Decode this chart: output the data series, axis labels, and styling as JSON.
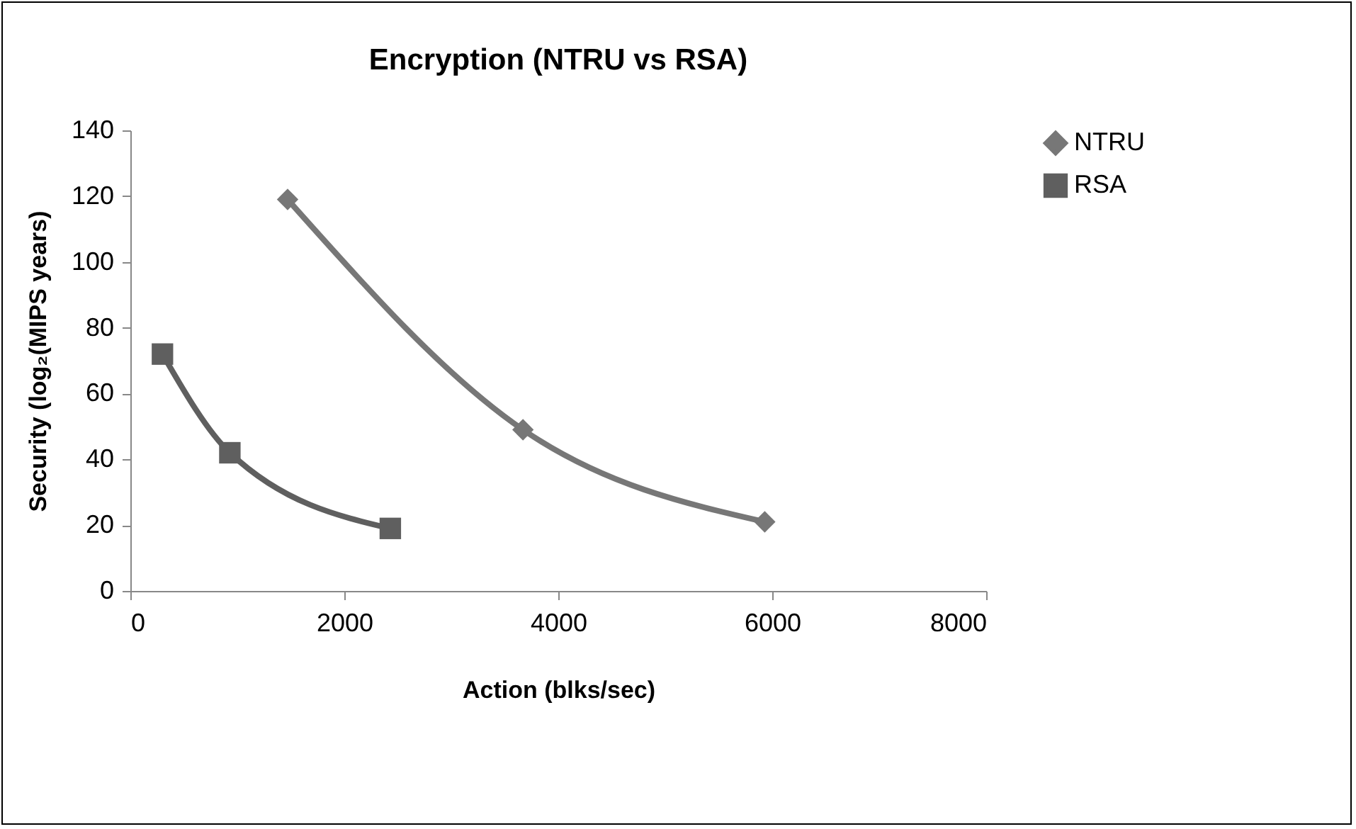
{
  "chart_data": {
    "type": "line",
    "title": "Encryption (NTRU vs RSA)",
    "xlabel": "Action (blks/sec)",
    "ylabel": "Security (log₂(MIPS years)",
    "xlim": [
      0,
      8000
    ],
    "xticks": [
      0,
      2000,
      4000,
      6000,
      8000
    ],
    "ylim": [
      0,
      140
    ],
    "yticks": [
      0,
      20,
      40,
      60,
      80,
      100,
      120,
      140
    ],
    "grid": false,
    "legend": "right",
    "line_style": "solid",
    "series": [
      {
        "name": "NTRU",
        "color": "#777777",
        "marker": "diamond",
        "x": [
          1470,
          3670,
          5930
        ],
        "values": [
          119,
          49,
          21
        ]
      },
      {
        "name": "RSA",
        "color": "#5f5f5f",
        "marker": "square",
        "x": [
          300,
          930,
          2430
        ],
        "values": [
          72,
          42,
          19
        ]
      }
    ]
  }
}
